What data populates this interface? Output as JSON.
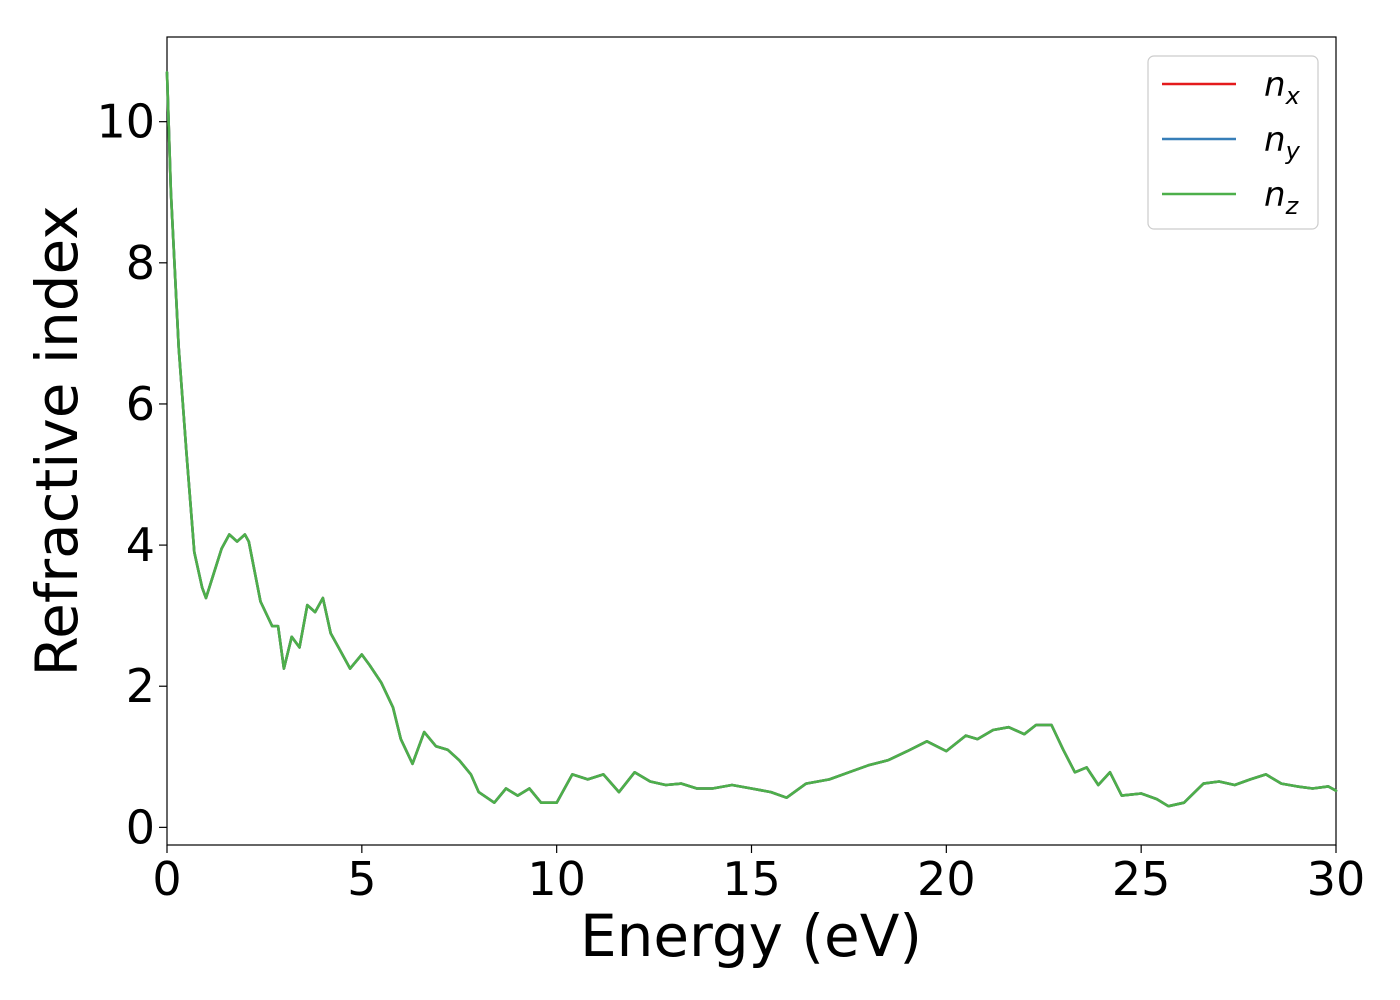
{
  "chart_data": {
    "type": "line",
    "xlabel": "Energy (eV)",
    "ylabel": "Refractive index",
    "xlim": [
      0,
      30
    ],
    "ylim": [
      -0.25,
      11.2
    ],
    "xticks": [
      0,
      5,
      10,
      15,
      20,
      25,
      30
    ],
    "yticks": [
      0,
      2,
      4,
      6,
      8,
      10
    ],
    "grid": false,
    "legend_position": "top-right",
    "series": [
      {
        "name": "n",
        "subscript": "x",
        "color": "#e41a1c"
      },
      {
        "name": "n",
        "subscript": "y",
        "color": "#377eb8"
      },
      {
        "name": "n",
        "subscript": "z",
        "color": "#4daf4a"
      }
    ],
    "x": [
      0,
      0.1,
      0.3,
      0.5,
      0.7,
      0.9,
      1.0,
      1.2,
      1.4,
      1.6,
      1.8,
      2.0,
      2.1,
      2.4,
      2.7,
      2.85,
      3.0,
      3.2,
      3.4,
      3.6,
      3.8,
      4.0,
      4.2,
      4.4,
      4.7,
      5.0,
      5.2,
      5.5,
      5.8,
      6.0,
      6.3,
      6.6,
      6.9,
      7.2,
      7.5,
      7.8,
      8.0,
      8.4,
      8.7,
      9.0,
      9.3,
      9.6,
      10.0,
      10.4,
      10.8,
      11.2,
      11.6,
      12.0,
      12.4,
      12.8,
      13.2,
      13.6,
      14.0,
      14.5,
      15.0,
      15.5,
      15.9,
      16.4,
      17.0,
      17.5,
      18.0,
      18.5,
      19.0,
      19.5,
      20.0,
      20.5,
      20.8,
      21.2,
      21.6,
      22.0,
      22.3,
      22.7,
      23.0,
      23.3,
      23.6,
      23.9,
      24.2,
      24.5,
      25.0,
      25.4,
      25.7,
      26.1,
      26.6,
      27.0,
      27.4,
      27.8,
      28.2,
      28.6,
      29.0,
      29.4,
      29.8,
      30.0
    ],
    "values": [
      10.7,
      9.0,
      6.8,
      5.3,
      3.9,
      3.4,
      3.25,
      3.6,
      3.95,
      4.15,
      4.05,
      4.15,
      4.05,
      3.2,
      2.85,
      2.85,
      2.25,
      2.7,
      2.55,
      3.15,
      3.05,
      3.25,
      2.75,
      2.55,
      2.25,
      2.45,
      2.3,
      2.05,
      1.7,
      1.25,
      0.9,
      1.35,
      1.15,
      1.1,
      0.95,
      0.75,
      0.5,
      0.35,
      0.55,
      0.45,
      0.55,
      0.35,
      0.35,
      0.75,
      0.68,
      0.75,
      0.5,
      0.78,
      0.65,
      0.6,
      0.62,
      0.55,
      0.55,
      0.6,
      0.55,
      0.5,
      0.42,
      0.62,
      0.68,
      0.78,
      0.88,
      0.95,
      1.08,
      1.22,
      1.08,
      1.3,
      1.25,
      1.38,
      1.42,
      1.32,
      1.45,
      1.45,
      1.1,
      0.78,
      0.85,
      0.6,
      0.78,
      0.45,
      0.48,
      0.4,
      0.3,
      0.35,
      0.62,
      0.65,
      0.6,
      0.68,
      0.75,
      0.62,
      0.58,
      0.55,
      0.58,
      0.52
    ]
  }
}
